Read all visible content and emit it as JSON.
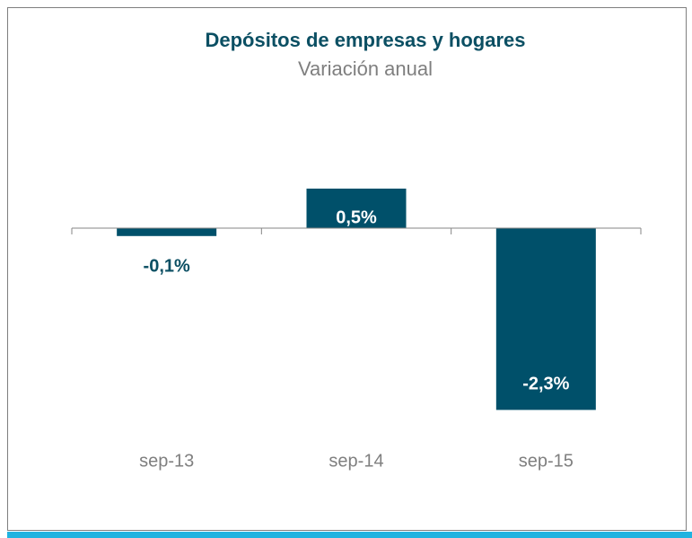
{
  "chart_data": {
    "type": "bar",
    "title": "Depósitos de empresas  y hogares",
    "subtitle": "Variación anual",
    "categories": [
      "sep-13",
      "sep-14",
      "sep-15"
    ],
    "values": [
      -0.1,
      0.5,
      -2.3
    ],
    "value_labels": [
      "-0,1%",
      "0,5%",
      "-2,3%"
    ],
    "color": "#00506a"
  }
}
